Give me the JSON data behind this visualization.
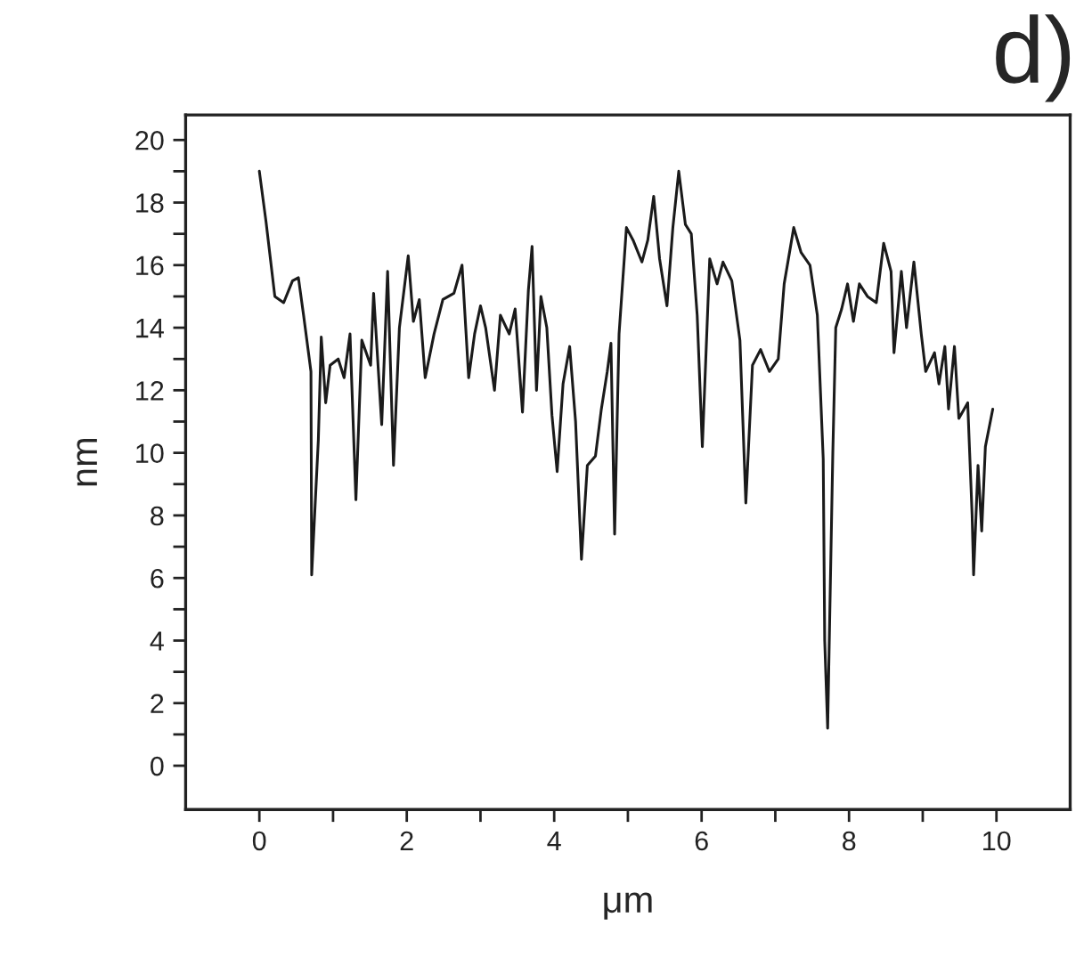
{
  "chart_data": {
    "type": "line",
    "title": "d)",
    "xlabel": "μm",
    "ylabel": "nm",
    "xlim": [
      -1,
      11
    ],
    "ylim": [
      -1.4,
      20.8
    ],
    "xticks": [
      0,
      {
        "value": 1,
        "label": null
      },
      2,
      {
        "value": 3,
        "label": null
      },
      4,
      {
        "value": 5,
        "label": null
      },
      6,
      {
        "value": 7,
        "label": null
      },
      8,
      {
        "value": 9,
        "label": null
      },
      10
    ],
    "yticks": [
      0,
      {
        "value": 1,
        "label": null
      },
      2,
      {
        "value": 3,
        "label": null
      },
      4,
      {
        "value": 5,
        "label": null
      },
      6,
      {
        "value": 7,
        "label": null
      },
      8,
      {
        "value": 9,
        "label": null
      },
      10,
      {
        "value": 11,
        "label": null
      },
      12,
      {
        "value": 13,
        "label": null
      },
      14,
      {
        "value": 15,
        "label": null
      },
      16,
      {
        "value": 17,
        "label": null
      },
      18,
      {
        "value": 19,
        "label": null
      },
      20
    ],
    "marker": "none",
    "line_style": "solid",
    "series": [
      {
        "color": "#1a1a1a",
        "x": [
          0,
          0.09,
          0.21,
          0.33,
          0.45,
          0.53,
          0.6,
          0.7,
          0.71,
          0.8,
          0.84,
          0.9,
          0.96,
          1.07,
          1.15,
          1.23,
          1.31,
          1.39,
          1.51,
          1.55,
          1.66,
          1.74,
          1.82,
          1.9,
          2.02,
          2.09,
          2.17,
          2.25,
          2.37,
          2.49,
          2.64,
          2.75,
          2.84,
          2.92,
          3.0,
          3.07,
          3.19,
          3.27,
          3.39,
          3.47,
          3.57,
          3.65,
          3.7,
          3.76,
          3.82,
          3.9,
          3.97,
          4.04,
          4.12,
          4.21,
          4.29,
          4.37,
          4.45,
          4.56,
          4.64,
          4.72,
          4.77,
          4.82,
          4.88,
          4.98,
          5.07,
          5.19,
          5.27,
          5.35,
          5.43,
          5.53,
          5.61,
          5.69,
          5.78,
          5.86,
          5.94,
          6.01,
          6.11,
          6.21,
          6.29,
          6.41,
          6.52,
          6.6,
          6.69,
          6.8,
          6.92,
          7.04,
          7.12,
          7.25,
          7.35,
          7.47,
          7.57,
          7.65,
          7.67,
          7.71,
          7.78,
          7.82,
          7.9,
          7.98,
          8.06,
          8.14,
          8.25,
          8.37,
          8.47,
          8.57,
          8.61,
          8.71,
          8.78,
          8.88,
          8.98,
          9.04,
          9.16,
          9.22,
          9.3,
          9.35,
          9.43,
          9.49,
          9.61,
          9.67,
          9.69,
          9.75,
          9.8,
          9.85,
          9.95
        ],
        "values": [
          19.0,
          17.4,
          15.0,
          14.8,
          15.5,
          15.6,
          14.4,
          12.6,
          6.1,
          10.4,
          13.7,
          11.6,
          12.8,
          13.0,
          12.4,
          13.8,
          8.5,
          13.6,
          12.8,
          15.1,
          10.9,
          15.8,
          9.6,
          14.0,
          16.3,
          14.2,
          14.9,
          12.4,
          13.8,
          14.9,
          15.1,
          16.0,
          12.4,
          13.8,
          14.7,
          14.0,
          12.0,
          14.4,
          13.8,
          14.6,
          11.3,
          15.2,
          16.6,
          12.0,
          15.0,
          14.0,
          11.2,
          9.4,
          12.2,
          13.4,
          11.0,
          6.6,
          9.6,
          9.9,
          11.4,
          12.6,
          13.5,
          7.4,
          13.8,
          17.2,
          16.8,
          16.1,
          16.8,
          18.2,
          16.2,
          14.7,
          17.2,
          19.0,
          17.3,
          17.0,
          14.4,
          10.2,
          16.2,
          15.4,
          16.1,
          15.5,
          13.6,
          8.4,
          12.8,
          13.3,
          12.6,
          13.0,
          15.4,
          17.2,
          16.4,
          16.0,
          14.4,
          9.8,
          4.0,
          1.2,
          10.0,
          14.0,
          14.6,
          15.4,
          14.2,
          15.4,
          15.0,
          14.8,
          16.7,
          15.8,
          13.2,
          15.8,
          14.0,
          16.1,
          13.8,
          12.6,
          13.2,
          12.2,
          13.4,
          11.4,
          13.4,
          11.1,
          11.6,
          8.0,
          6.1,
          9.6,
          7.5,
          10.2,
          11.4
        ]
      }
    ]
  }
}
